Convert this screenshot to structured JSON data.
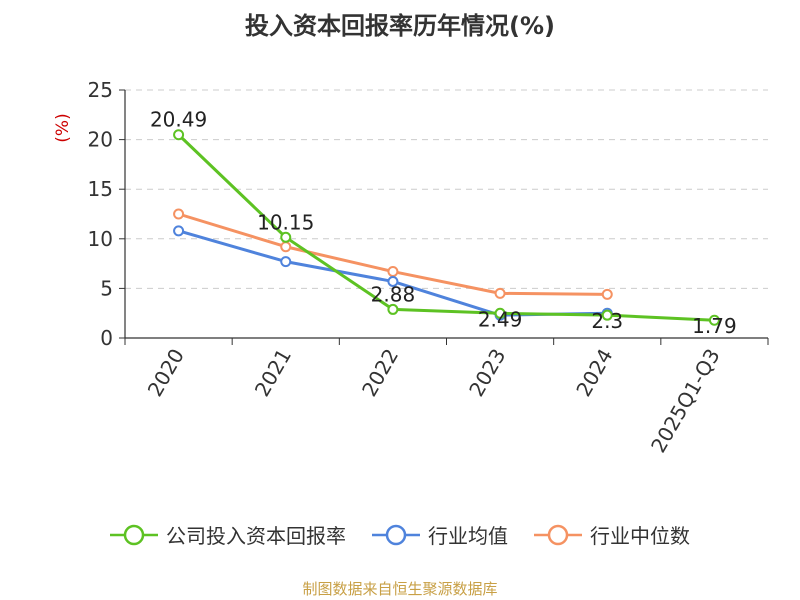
{
  "title": "投入资本回报率历年情况(%)",
  "source": "制图数据来自恒生聚源数据库",
  "chart_data": {
    "type": "line",
    "title": "投入资本回报率历年情况(%)",
    "ylabel": "(%)",
    "xlabel": "",
    "ylim": [
      0,
      25
    ],
    "yticks": [
      0,
      5,
      10,
      15,
      20,
      25
    ],
    "categories": [
      "2020",
      "2021",
      "2022",
      "2023",
      "2024",
      "2025Q1-Q3"
    ],
    "grid": true,
    "legend_position": "bottom",
    "series": [
      {
        "name": "公司投入资本回报率",
        "color": "#5dc223",
        "values": [
          20.49,
          10.15,
          2.88,
          2.49,
          2.3,
          1.79
        ],
        "labels": [
          "20.49",
          "10.15",
          "2.88",
          "2.49",
          "2.3",
          "1.79"
        ]
      },
      {
        "name": "行业均值",
        "color": "#4f83dc",
        "values": [
          10.8,
          7.7,
          5.7,
          2.3,
          2.5,
          null
        ]
      },
      {
        "name": "行业中位数",
        "color": "#f59262",
        "values": [
          12.5,
          9.2,
          6.7,
          4.5,
          4.4,
          null
        ]
      }
    ]
  }
}
